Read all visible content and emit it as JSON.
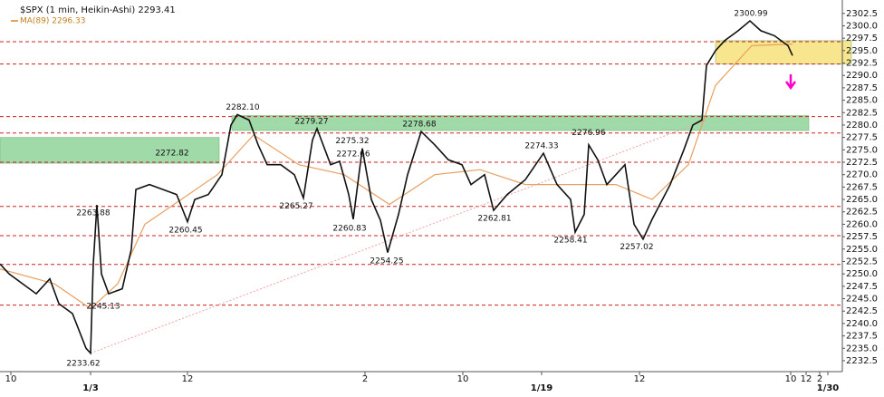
{
  "chart_data": {
    "type": "line",
    "title": "$SPX (1 min, Heikin-Ashi) 2293.41",
    "subtitle": "MA(89) 2296.33",
    "xlim": [
      0,
      930
    ],
    "ylim": [
      2230.3,
      2305.2
    ],
    "yticks": [
      2232.5,
      {
        "value": 2235,
        "label": "2235.0"
      },
      2237.5,
      {
        "value": 2240,
        "label": "2240.0"
      },
      2242.5,
      {
        "value": 2245,
        "label": "2245.0"
      },
      2247.5,
      {
        "value": 2250,
        "label": "2250.0"
      },
      2252.5,
      {
        "value": 2255,
        "label": "2255.0"
      },
      2257.5,
      {
        "value": 2260,
        "label": "2260.0"
      },
      2262.5,
      {
        "value": 2265,
        "label": "2265.0"
      },
      2267.5,
      {
        "value": 2270,
        "label": "2270.0"
      },
      2272.5,
      {
        "value": 2275,
        "label": "2275.0"
      },
      2277.5,
      {
        "value": 2280,
        "label": "2280.0"
      },
      2282.5,
      {
        "value": 2285,
        "label": "2285.0"
      },
      2287.5,
      {
        "value": 2290,
        "label": "2290.0"
      },
      2292.5,
      {
        "value": 2295,
        "label": "2295.0"
      },
      2297.5,
      {
        "value": 2300,
        "label": "2300.0"
      },
      2302.5
    ],
    "xticks": [
      {
        "value": 12,
        "label": "10"
      },
      {
        "value": 100,
        "label": "1/3"
      },
      {
        "value": 207,
        "label": "12"
      },
      {
        "value": 403,
        "label": "2"
      },
      {
        "value": 511,
        "label": "10"
      },
      {
        "value": 598,
        "label": "1/19"
      },
      {
        "value": 706,
        "label": "12"
      },
      {
        "value": 873,
        "label": "10"
      },
      {
        "value": 890,
        "label": "12"
      },
      {
        "value": 905,
        "label": "2"
      },
      {
        "value": 914,
        "label": "1/30"
      }
    ],
    "series": [
      {
        "name": "$SPX",
        "color": "#111111",
        "x": [
          0,
          10,
          25,
          40,
          55,
          65,
          80,
          95,
          100,
          103,
          107,
          112,
          120,
          135,
          145,
          150,
          165,
          180,
          195,
          207,
          215,
          230,
          245,
          255,
          262,
          275,
          285,
          295,
          310,
          325,
          335,
          345,
          350,
          365,
          375,
          385,
          390,
          400,
          410,
          420,
          428,
          440,
          450,
          465,
          480,
          495,
          510,
          520,
          535,
          545,
          560,
          580,
          600,
          615,
          630,
          635,
          645,
          650,
          660,
          670,
          680,
          690,
          700,
          710,
          720,
          740,
          755,
          765,
          775,
          780,
          790,
          800,
          815,
          828,
          840,
          855,
          870,
          875
        ],
        "values": [
          2252,
          2250,
          2248,
          2246,
          2249,
          2244,
          2242,
          2235,
          2234,
          2252,
          2263.9,
          2250,
          2246,
          2247,
          2255,
          2267,
          2268,
          2267,
          2266,
          2260.5,
          2265,
          2266,
          2270,
          2280,
          2282.1,
          2281,
          2276,
          2272,
          2272,
          2270,
          2265.3,
          2277,
          2279.3,
          2272,
          2272.7,
          2266,
          2261,
          2275.3,
          2265,
          2260.8,
          2254.3,
          2262,
          2270,
          2278.7,
          2276,
          2273,
          2272,
          2268,
          2270,
          2262.8,
          2266,
          2269,
          2274.3,
          2268,
          2265,
          2258.4,
          2262,
          2276,
          2273,
          2268,
          2270,
          2272,
          2260,
          2257,
          2261,
          2268,
          2275,
          2280,
          2281,
          2292,
          2295,
          2297,
          2299,
          2301,
          2299,
          2298,
          2296,
          2294
        ]
      },
      {
        "name": "MA(89)",
        "color": "#e8a060",
        "x": [
          0,
          60,
          100,
          130,
          160,
          200,
          240,
          280,
          330,
          380,
          430,
          480,
          530,
          580,
          630,
          680,
          720,
          760,
          790,
          830,
          875
        ],
        "values": [
          2251,
          2248,
          2243,
          2248,
          2260,
          2265,
          2270,
          2278,
          2272,
          2270,
          2264,
          2270,
          2271,
          2268,
          2268,
          2268,
          2265,
          2272,
          2288,
          2296,
          2296.33
        ]
      }
    ],
    "levels": [
      2296.8,
      2292.3,
      2281.7,
      2278.4,
      2272.5,
      2263.6,
      2257.7,
      2251.9,
      2243.7
    ],
    "zones": [
      {
        "x": [
          0,
          242
        ],
        "range": [
          2272.3,
          2277.5
        ],
        "color": "#8fd39a"
      },
      {
        "x": [
          256,
          893
        ],
        "range": [
          2278.9,
          2281.9
        ],
        "color": "#8fd39a"
      },
      {
        "x": [
          790,
          940
        ],
        "range": [
          2292.3,
          2297.0
        ],
        "color": "#f7e27a"
      }
    ],
    "trendline": {
      "x": [
        100,
        780
      ],
      "values": [
        2234,
        2281
      ],
      "color": "#f0a0a0"
    },
    "annotations": [
      {
        "x": 829,
        "value": 2300.99,
        "label": "2300.99"
      },
      {
        "x": 268,
        "value": 2282.1,
        "label": "2282.10"
      },
      {
        "x": 344,
        "value": 2279.27,
        "label": "2279.27"
      },
      {
        "x": 463,
        "value": 2278.68,
        "label": "2278.68"
      },
      {
        "x": 650,
        "value": 2276.96,
        "label": "2276.96"
      },
      {
        "x": 190,
        "value": 2272.82,
        "label": "2272.82"
      },
      {
        "x": 389,
        "value": 2275.32,
        "label": "2275.32"
      },
      {
        "x": 390,
        "value": 2272.66,
        "label": "2272.66"
      },
      {
        "x": 598,
        "value": 2274.33,
        "label": "2274.33"
      },
      {
        "x": 103,
        "value": 2263.88,
        "label": "2263.88"
      },
      {
        "x": 205,
        "value": 2260.45,
        "label": "2260.45"
      },
      {
        "x": 327,
        "value": 2265.27,
        "label": "2265.27"
      },
      {
        "x": 386,
        "value": 2260.83,
        "label": "2260.83"
      },
      {
        "x": 427,
        "value": 2254.25,
        "label": "2254.25"
      },
      {
        "x": 546,
        "value": 2262.81,
        "label": "2262.81"
      },
      {
        "x": 630,
        "value": 2258.41,
        "label": "2258.41"
      },
      {
        "x": 703,
        "value": 2257.02,
        "label": "2257.02"
      },
      {
        "x": 114,
        "value": 2245.13,
        "label": "2245.13"
      },
      {
        "x": 92,
        "value": 2233.62,
        "label": "2233.62"
      }
    ]
  }
}
